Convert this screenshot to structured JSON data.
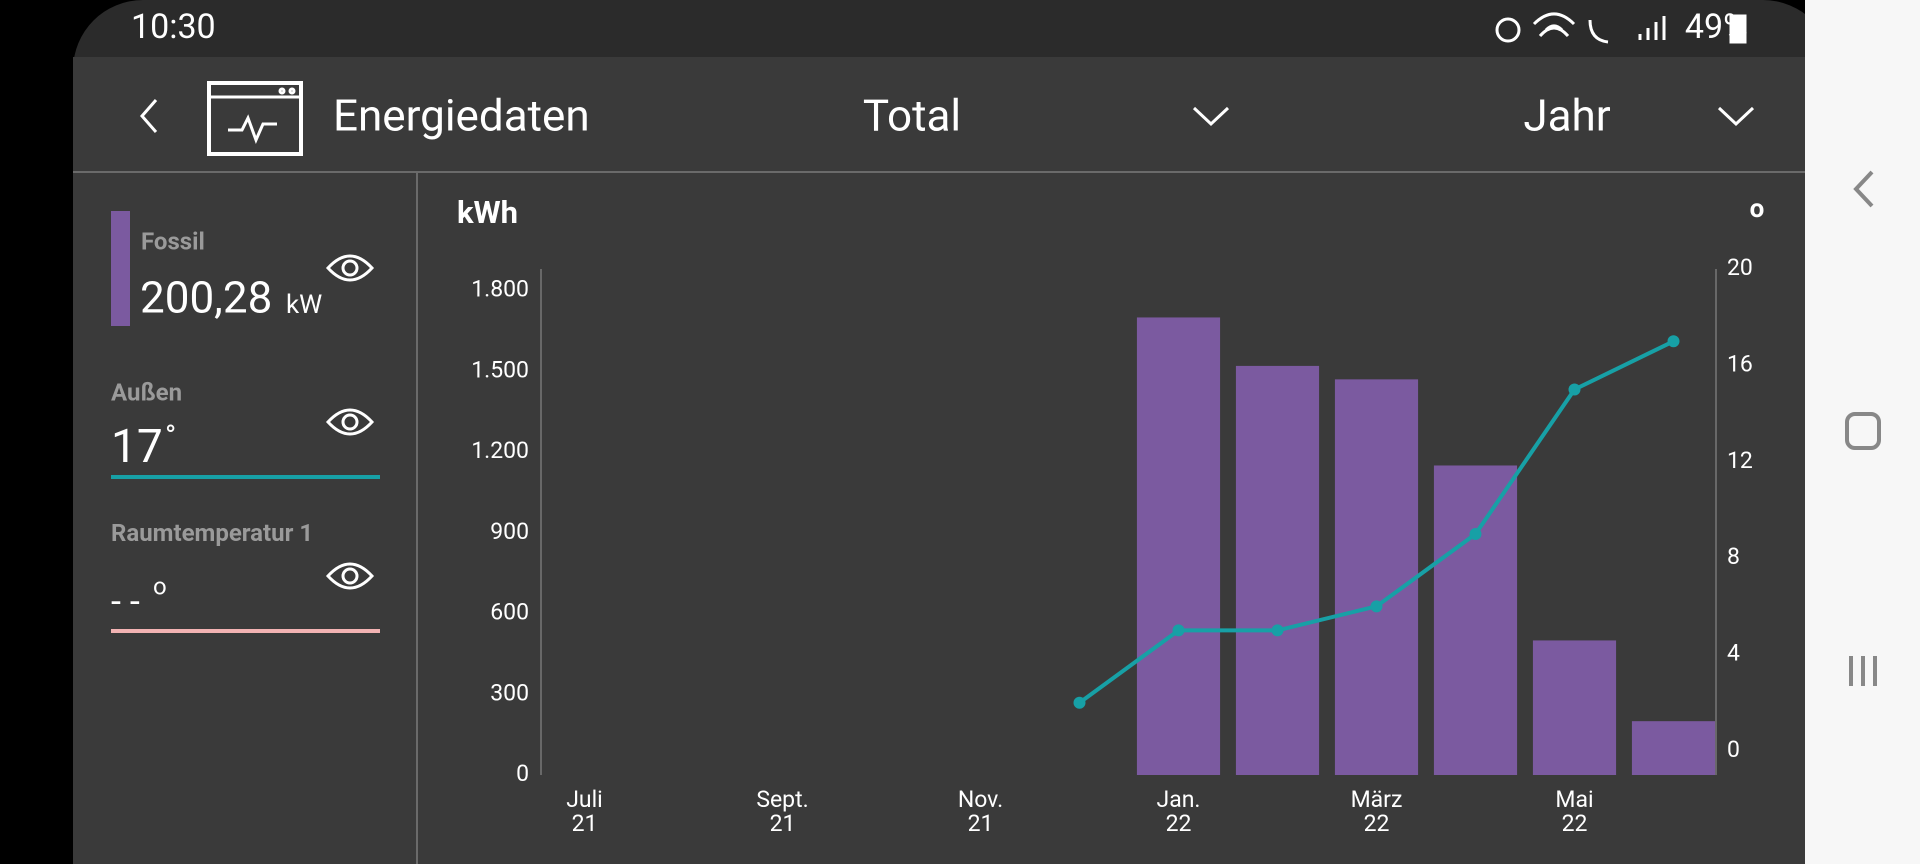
{
  "status_bar": {
    "time": "10:30",
    "battery": "49%"
  },
  "header": {
    "title": "Energiedaten",
    "filter": "Total",
    "period": "Jahr"
  },
  "sidebar": {
    "fossil": {
      "value": "200,28",
      "unit": "kW"
    },
    "outside": {
      "value": "17",
      "unit": "°"
    },
    "room": {
      "label": "Raumtemperatur 1",
      "value": "- -",
      "unit": "o"
    }
  },
  "chart_data": {
    "type": "bar",
    "ylabel": "kWh",
    "y2label": "o",
    "categories": [
      "Juli\n21",
      null,
      "Sept.\n21",
      null,
      "Nov.\n21",
      null,
      "Jan.\n22",
      null,
      "März\n22",
      null,
      "Mai\n22",
      null
    ],
    "series": [
      {
        "name": "Fossil",
        "type": "bar",
        "color": "#7b5aa0",
        "values": [
          null,
          null,
          null,
          null,
          null,
          null,
          1700,
          1520,
          1470,
          1150,
          500,
          200
        ]
      },
      {
        "name": "Außen",
        "type": "line",
        "axis": "y2",
        "color": "#17a0a6",
        "values": [
          null,
          null,
          null,
          null,
          null,
          2,
          5,
          5,
          6,
          9,
          15,
          17
        ]
      }
    ],
    "ylim": [
      0,
      1880
    ],
    "yticks": [
      0,
      300,
      600,
      900,
      {
        "value": 1200,
        "label": "1.200"
      },
      {
        "value": 1500,
        "label": "1.500"
      },
      {
        "value": 1800,
        "label": "1.800"
      }
    ],
    "y2lim": [
      -1,
      20
    ],
    "y2ticks": [
      0,
      4,
      8,
      12,
      16,
      20
    ]
  }
}
